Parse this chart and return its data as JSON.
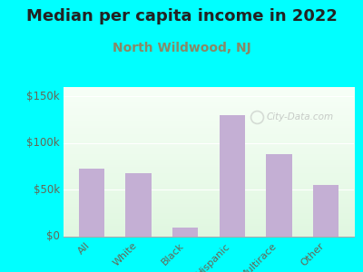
{
  "title": "Median per capita income in 2022",
  "subtitle": "North Wildwood, NJ",
  "categories": [
    "All",
    "White",
    "Black",
    "Hispanic",
    "Multirace",
    "Other"
  ],
  "values": [
    73000,
    68000,
    10000,
    130000,
    88000,
    55000
  ],
  "bar_color": "#c4afd4",
  "background_outer": "#00FFFF",
  "background_inner_top": "#e8f5e2",
  "background_inner_bottom": "#f8fef8",
  "title_fontsize": 13,
  "subtitle_fontsize": 10,
  "subtitle_color": "#888866",
  "title_color": "#222222",
  "tick_color": "#666655",
  "ylim": [
    0,
    160000
  ],
  "yticks": [
    0,
    50000,
    100000,
    150000
  ],
  "ytick_labels": [
    "$0",
    "$50k",
    "$100k",
    "$150k"
  ],
  "watermark": "City-Data.com"
}
